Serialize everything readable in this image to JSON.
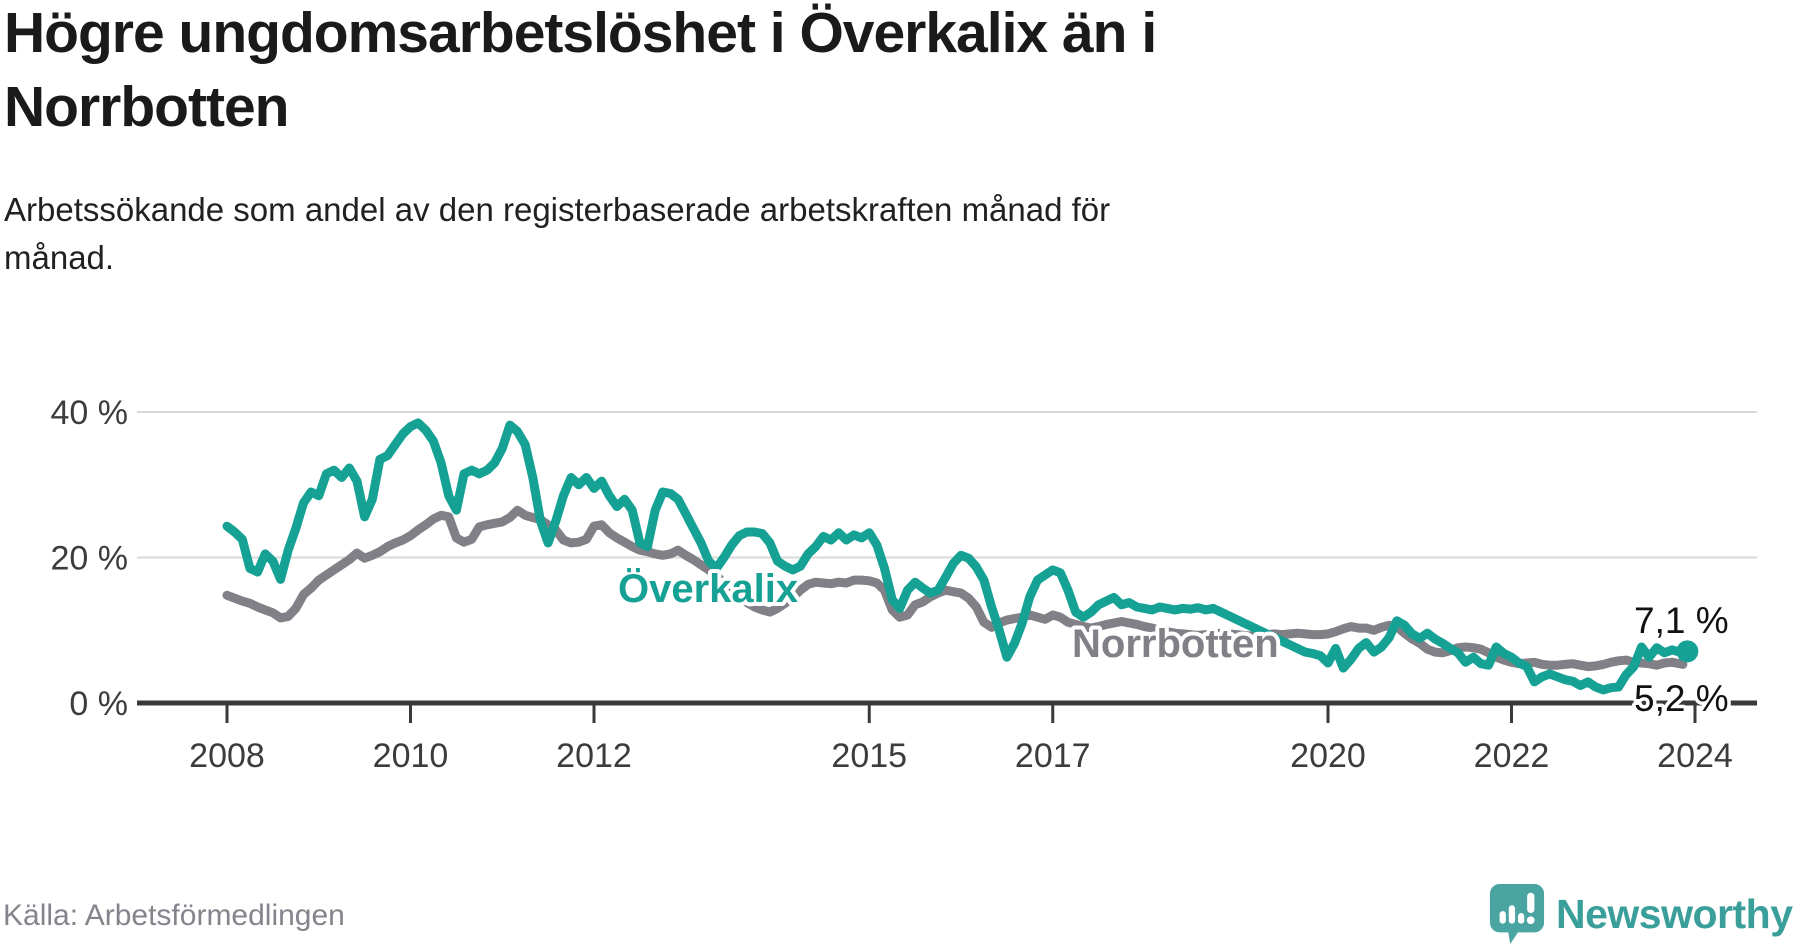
{
  "header": {
    "title_lines": [
      "Högre ungdomsarbetslöshet i Överkalix än i",
      "Norrbotten"
    ],
    "subtitle_lines": [
      "Arbetssökande som andel av den registerbaserade arbetskraften månad för",
      "månad."
    ]
  },
  "footer": {
    "source": "Källa: Arbetsförmedlingen",
    "brand": "Newsworthy"
  },
  "colors": {
    "overkalix": "#16a195",
    "norrbotten": "#808086",
    "grid": "#d9d9d9",
    "axis": "#3a3a3a",
    "logo": "#4aa4a1"
  },
  "chart_data": {
    "type": "line",
    "title": "Högre ungdomsarbetslöshet i Överkalix än i Norrbotten",
    "subtitle": "Arbetssökande som andel av den registerbaserade arbetskraften månad för månad.",
    "unit": "percent",
    "frequency": "monthly",
    "x_start": "2008-01",
    "x_end": "2023-12",
    "ylim": [
      0,
      42
    ],
    "grid": "horizontal",
    "legend_position": "inline-labels",
    "y_axis": {
      "ticks": [
        {
          "value": 0,
          "label": "0 %"
        },
        {
          "value": 20,
          "label": "20 %"
        },
        {
          "value": 40,
          "label": "40 %"
        }
      ]
    },
    "x_axis": {
      "ticks": [
        2008,
        2010,
        2012,
        2015,
        2017,
        2020,
        2022,
        2024
      ]
    },
    "series": [
      {
        "name": "Överkalix",
        "color": "#16a195",
        "end_label": "7,1 %",
        "end_value": 7.1,
        "end_dot": true,
        "last_segment_dashed": true,
        "values": [
          24.3,
          23.5,
          22.5,
          18.5,
          18,
          20.5,
          19.5,
          17,
          21,
          24,
          27.5,
          29,
          28.5,
          31.5,
          32,
          31,
          32.3,
          30.5,
          25.6,
          28,
          33.5,
          34,
          35.5,
          37,
          38,
          38.5,
          37.5,
          36,
          33,
          28.5,
          26.5,
          31.5,
          32,
          31.5,
          32,
          33,
          35,
          38.2,
          37.3,
          35.5,
          31,
          25,
          22,
          25,
          28.5,
          31,
          30,
          31,
          29.5,
          30.5,
          28.5,
          27,
          28,
          26.5,
          22,
          21.5,
          26.5,
          29,
          28.8,
          28,
          26,
          24,
          22,
          19.5,
          18.5,
          20,
          21.7,
          23,
          23.5,
          23.5,
          23.3,
          22,
          19.5,
          18.8,
          18.3,
          18.8,
          20.5,
          21.5,
          22.9,
          22.4,
          23.4,
          22.4,
          23.1,
          22.7,
          23.4,
          21.7,
          18.5,
          14.2,
          13,
          15.5,
          16.6,
          15.8,
          15.1,
          15.5,
          17.3,
          19.2,
          20.3,
          19.9,
          18.7,
          16.9,
          13.2,
          10,
          6.3,
          8.2,
          11,
          14.6,
          16.9,
          17.6,
          18.3,
          17.9,
          15.5,
          12.5,
          11.8,
          12.5,
          13.5,
          14,
          14.5,
          13.5,
          13.8,
          13.2,
          13,
          12.8,
          13.2,
          13,
          12.8,
          13,
          12.9,
          13.1,
          12.8,
          13,
          12.5,
          12,
          11.5,
          11,
          10.5,
          10,
          9.5,
          9,
          8.5,
          8,
          7.5,
          7,
          6.8,
          6.5,
          5.5,
          7.5,
          4.8,
          6,
          7.5,
          8.3,
          7,
          7.7,
          9,
          11.3,
          10.7,
          9.5,
          8.9,
          9.6,
          8.8,
          8.2,
          7.5,
          6.9,
          5.6,
          6.3,
          5.4,
          5.2,
          7.7,
          6.8,
          6.3,
          5.5,
          5,
          2.9,
          3.6,
          4,
          3.6,
          3.2,
          3,
          2.4,
          2.9,
          2.2,
          1.8,
          2.1,
          2.2,
          3.9,
          5,
          7.7,
          6.3,
          7.6,
          6.9,
          7.3,
          7,
          7.1
        ]
      },
      {
        "name": "Norrbotten",
        "color": "#808086",
        "end_label": "5,2 %",
        "end_value": 5.2,
        "end_dot": false,
        "last_segment_dashed": true,
        "values": [
          14.8,
          14.4,
          14,
          13.7,
          13.2,
          12.8,
          12.4,
          11.7,
          11.9,
          13,
          14.9,
          15.8,
          16.9,
          17.6,
          18.3,
          19,
          19.7,
          20.6,
          19.9,
          20.3,
          20.8,
          21.5,
          22,
          22.4,
          23,
          23.8,
          24.5,
          25.3,
          25.8,
          25.6,
          22.7,
          22.1,
          22.5,
          24.2,
          24.5,
          24.7,
          24.9,
          25.5,
          26.5,
          25.8,
          25.5,
          25.2,
          24.5,
          23.8,
          22.4,
          22,
          22.1,
          22.5,
          24.3,
          24.5,
          23.4,
          22.7,
          22.1,
          21.5,
          21,
          20.8,
          20.5,
          20.3,
          20.5,
          21,
          20.3,
          19.7,
          19,
          18.3,
          17.5,
          16.5,
          15.5,
          14.5,
          13.8,
          13.2,
          12.8,
          12.5,
          13,
          13.7,
          14.5,
          15.5,
          16.3,
          16.6,
          16.5,
          16.4,
          16.6,
          16.5,
          16.9,
          16.9,
          16.8,
          16.5,
          15.5,
          12.8,
          11.8,
          12.1,
          13.5,
          13.9,
          14.6,
          15.1,
          15.5,
          15.3,
          15.1,
          14.4,
          13.2,
          11.1,
          10.4,
          11,
          11.4,
          11.6,
          11.8,
          12.1,
          11.8,
          11.5,
          12.1,
          11.8,
          11.1,
          10.8,
          10.5,
          10.3,
          10.5,
          10.8,
          11,
          11.2,
          11,
          10.8,
          10.5,
          10.3,
          10,
          9.8,
          9.6,
          9.5,
          9.4,
          9.3,
          9.4,
          9.5,
          9.6,
          9.5,
          9.4,
          9.3,
          9.2,
          9.3,
          9.4,
          9.5,
          9.4,
          9.5,
          9.6,
          9.5,
          9.4,
          9.4,
          9.5,
          9.8,
          10.2,
          10.5,
          10.3,
          10.3,
          10,
          10.4,
          10.7,
          10.5,
          9.6,
          8.8,
          8.2,
          7.4,
          7,
          6.9,
          7.2,
          7.6,
          7.7,
          7.6,
          7.4,
          6.9,
          6.3,
          5.9,
          5.6,
          5.4,
          5.5,
          5.6,
          5.3,
          5.2,
          5.2,
          5.3,
          5.4,
          5.2,
          5,
          5.1,
          5.3,
          5.6,
          5.8,
          5.9,
          5.6,
          5.5,
          5.4,
          5.2,
          5.5,
          5.6,
          5.4,
          5.2
        ]
      }
    ]
  }
}
